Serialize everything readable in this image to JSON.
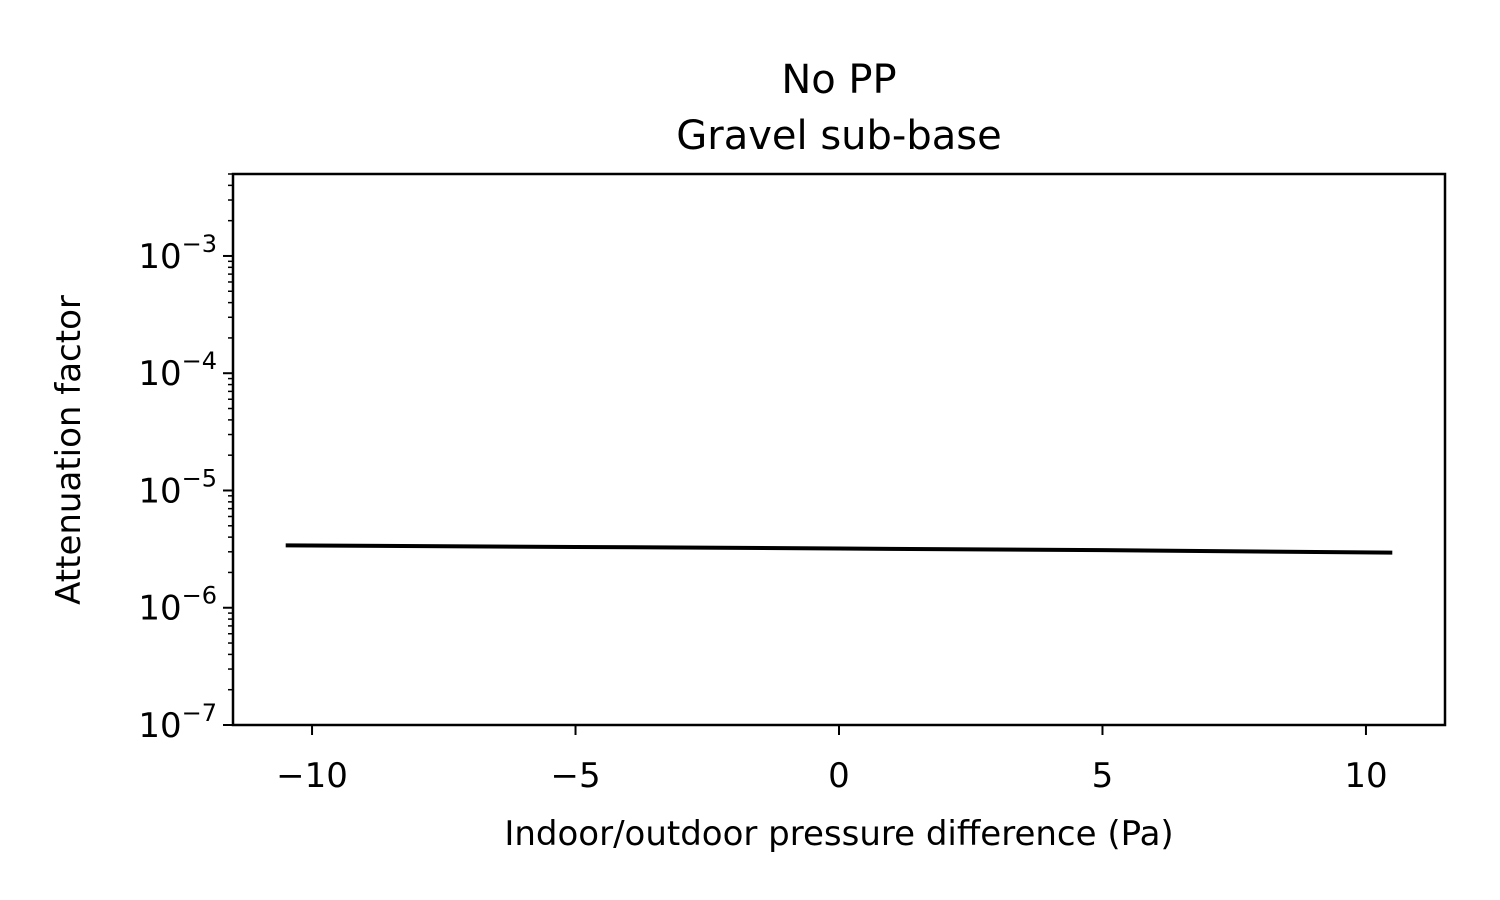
{
  "chart_data": {
    "type": "line",
    "title": "No PP",
    "subtitle": "Gravel sub-base",
    "xlabel": "Indoor/outdoor pressure difference (Pa)",
    "ylabel": "Attenuation factor",
    "xlim": [
      -11.5,
      11.5
    ],
    "ylim": [
      1e-07,
      0.005
    ],
    "yscale": "log",
    "grid": false,
    "x_ticks": [
      {
        "value": -10,
        "label": "−10"
      },
      {
        "value": -5,
        "label": "−5"
      },
      {
        "value": 0,
        "label": "0"
      },
      {
        "value": 5,
        "label": "5"
      },
      {
        "value": 10,
        "label": "10"
      }
    ],
    "y_ticks": [
      {
        "value": 1e-07,
        "base": "10",
        "exp": "−7"
      },
      {
        "value": 1e-06,
        "base": "10",
        "exp": "−6"
      },
      {
        "value": 1e-05,
        "base": "10",
        "exp": "−5"
      },
      {
        "value": 0.0001,
        "base": "10",
        "exp": "−4"
      },
      {
        "value": 0.001,
        "base": "10",
        "exp": "−3"
      }
    ],
    "series": [
      {
        "color": "#000000",
        "x": [
          -10.5,
          -5,
          0,
          5,
          10.5
        ],
        "y": [
          3.4e-06,
          3.3e-06,
          3.2e-06,
          3.1e-06,
          2.95e-06
        ]
      }
    ]
  }
}
